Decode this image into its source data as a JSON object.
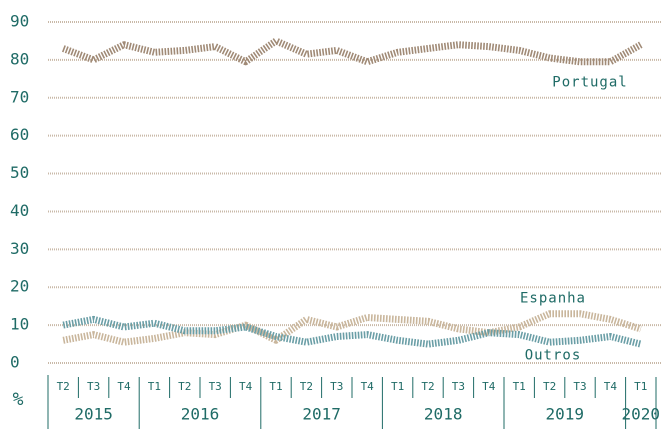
{
  "chart_data": {
    "type": "line",
    "y_label": "%",
    "categories": [
      "T2",
      "T3",
      "T4",
      "T1",
      "T2",
      "T3",
      "T4",
      "T1",
      "T2",
      "T3",
      "T4",
      "T1",
      "T2",
      "T3",
      "T4",
      "T1",
      "T2",
      "T3",
      "T4",
      "T1"
    ],
    "years": [
      "2015",
      "2016",
      "2017",
      "2018",
      "2019",
      "2020"
    ],
    "series": [
      {
        "name": "Portugal",
        "color": "#a08a76",
        "values": [
          83,
          80,
          84,
          82,
          82.5,
          83.5,
          79.5,
          85,
          81.5,
          82.5,
          79.5,
          82,
          83,
          84,
          83.5,
          82.5,
          80.5,
          79.5,
          79.5,
          84
        ]
      },
      {
        "name": "Espanha",
        "color": "#c9b69c",
        "values": [
          6,
          7.5,
          5.5,
          6.5,
          8,
          7.5,
          10,
          6,
          11.5,
          9.5,
          12,
          11.5,
          11,
          9,
          8,
          9.5,
          13,
          13,
          11.5,
          9
        ]
      },
      {
        "name": "Outros",
        "color": "#6a9ea6",
        "values": [
          10,
          11.5,
          9.5,
          10.5,
          8.5,
          8.5,
          9.5,
          7,
          5.5,
          7,
          7.5,
          6,
          5,
          6,
          8,
          7.5,
          5.5,
          6,
          7,
          5
        ]
      }
    ],
    "ylim": [
      0,
      90
    ],
    "yticks": [
      0,
      10,
      20,
      30,
      40,
      50,
      60,
      70,
      80,
      90
    ],
    "grid": true
  }
}
